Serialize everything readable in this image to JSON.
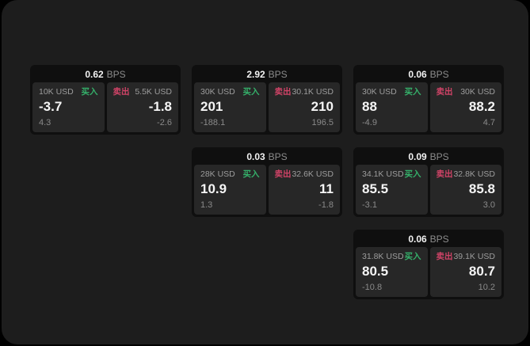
{
  "labels": {
    "bps": "BPS",
    "buy": "买入",
    "sell": "卖出"
  },
  "colors": {
    "outer_background": "#000000",
    "window_background": "#1d1d1d",
    "card_background": "#0f0f0f",
    "panel_background": "#272727",
    "buy_accent": "#35b06a",
    "sell_accent": "#d04367",
    "primary_text": "#f5f5f5",
    "secondary_text": "#8a8a8a"
  },
  "cards": [
    {
      "bps": "0.62",
      "buy": {
        "amount": "10K USD",
        "value": "-3.7",
        "sub": "4.3"
      },
      "sell": {
        "amount": "5.5K USD",
        "value": "-1.8",
        "sub": "-2.6"
      }
    },
    {
      "bps": "2.92",
      "buy": {
        "amount": "30K USD",
        "value": "201",
        "sub": "-188.1"
      },
      "sell": {
        "amount": "30.1K USD",
        "value": "210",
        "sub": "196.5"
      }
    },
    {
      "bps": "0.06",
      "buy": {
        "amount": "30K USD",
        "value": "88",
        "sub": "-4.9"
      },
      "sell": {
        "amount": "30K USD",
        "value": "88.2",
        "sub": "4.7"
      }
    },
    {
      "bps": "0.03",
      "buy": {
        "amount": "28K USD",
        "value": "10.9",
        "sub": "1.3"
      },
      "sell": {
        "amount": "32.6K USD",
        "value": "11",
        "sub": "-1.8"
      }
    },
    {
      "bps": "0.09",
      "buy": {
        "amount": "34.1K USD",
        "value": "85.5",
        "sub": "-3.1"
      },
      "sell": {
        "amount": "32.8K USD",
        "value": "85.8",
        "sub": "3.0"
      }
    },
    {
      "bps": "0.06",
      "buy": {
        "amount": "31.8K USD",
        "value": "80.5",
        "sub": "-10.8"
      },
      "sell": {
        "amount": "39.1K USD",
        "value": "80.7",
        "sub": "10.2"
      }
    }
  ]
}
